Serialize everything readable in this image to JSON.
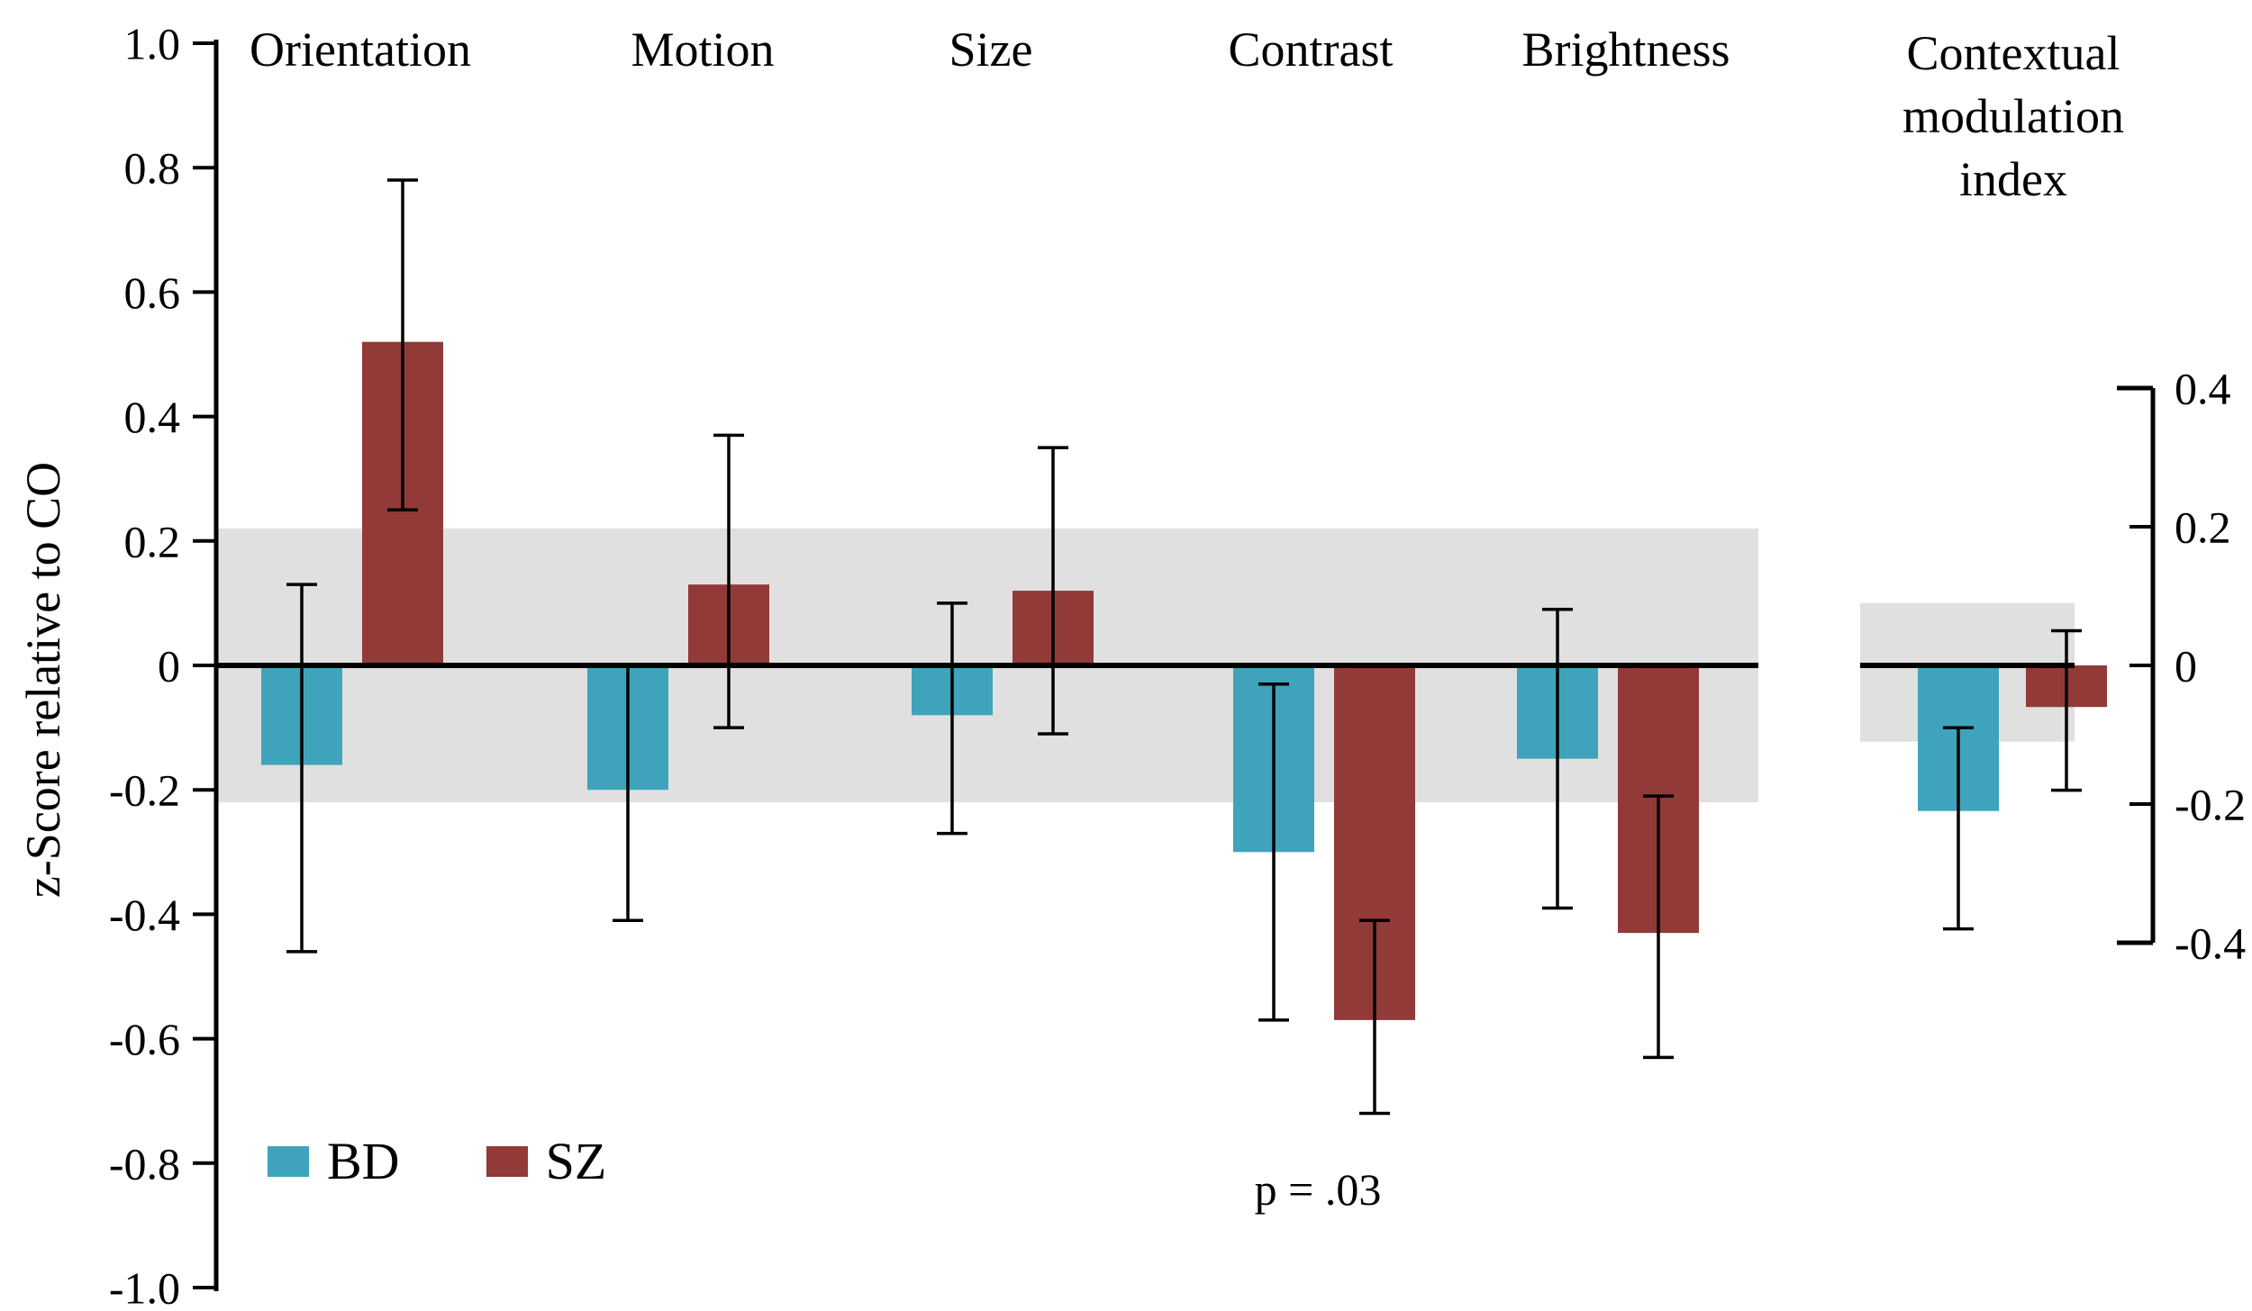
{
  "chart_data": {
    "type": "bar",
    "title": "",
    "ylabel": "z-Score relative to CO",
    "band_color": "#E0E0E0",
    "main_axis": {
      "range": [
        -1.0,
        1.0
      ],
      "ticks": [
        {
          "value": 1.0,
          "label": "1.0"
        },
        {
          "value": 0.8,
          "label": "0.8"
        },
        {
          "value": 0.6,
          "label": "0.6"
        },
        {
          "value": 0.4,
          "label": "0.4"
        },
        {
          "value": 0.2,
          "label": "0.2"
        },
        {
          "value": 0,
          "label": "0"
        },
        {
          "value": -0.2,
          "label": "-0.2"
        },
        {
          "value": -0.4,
          "label": "-0.4"
        },
        {
          "value": -0.6,
          "label": "-0.6"
        },
        {
          "value": -0.8,
          "label": "-0.8"
        },
        {
          "value": -1.0,
          "label": "-1.0"
        }
      ],
      "shaded_band": {
        "low": -0.22,
        "high": 0.22
      }
    },
    "context_axis": {
      "range": [
        -0.4,
        0.4
      ],
      "ticks": [
        {
          "value": 0.4,
          "label": "0.4"
        },
        {
          "value": 0.2,
          "label": "0.2"
        },
        {
          "value": 0,
          "label": "0"
        },
        {
          "value": -0.2,
          "label": "-0.2"
        },
        {
          "value": -0.4,
          "label": "-0.4"
        }
      ],
      "shaded_band": {
        "low": -0.11,
        "high": 0.09
      }
    },
    "categories": [
      "Orientation",
      "Motion",
      "Size",
      "Contrast",
      "Brightness"
    ],
    "context_label_lines": [
      "Contextual",
      "modulation",
      "index"
    ],
    "series": [
      {
        "name": "BD",
        "color": "#3FA4BB",
        "values": [
          -0.16,
          -0.2,
          -0.08,
          -0.3,
          -0.15
        ],
        "err_high": [
          0.13,
          0.0,
          0.1,
          -0.03,
          0.09
        ],
        "err_low": [
          -0.46,
          -0.41,
          -0.27,
          -0.57,
          -0.39
        ],
        "context_value": -0.21,
        "context_err_high": -0.09,
        "context_err_low": -0.38
      },
      {
        "name": "SZ",
        "color": "#913A37",
        "values": [
          0.52,
          0.13,
          0.12,
          -0.57,
          -0.43
        ],
        "err_high": [
          0.78,
          0.37,
          0.35,
          -0.41,
          -0.21
        ],
        "err_low": [
          0.25,
          -0.1,
          -0.11,
          -0.72,
          -0.63
        ],
        "context_value": -0.06,
        "context_err_high": 0.05,
        "context_err_low": -0.18
      }
    ],
    "annotation": {
      "text": "p = .03",
      "category": "Contrast"
    }
  }
}
